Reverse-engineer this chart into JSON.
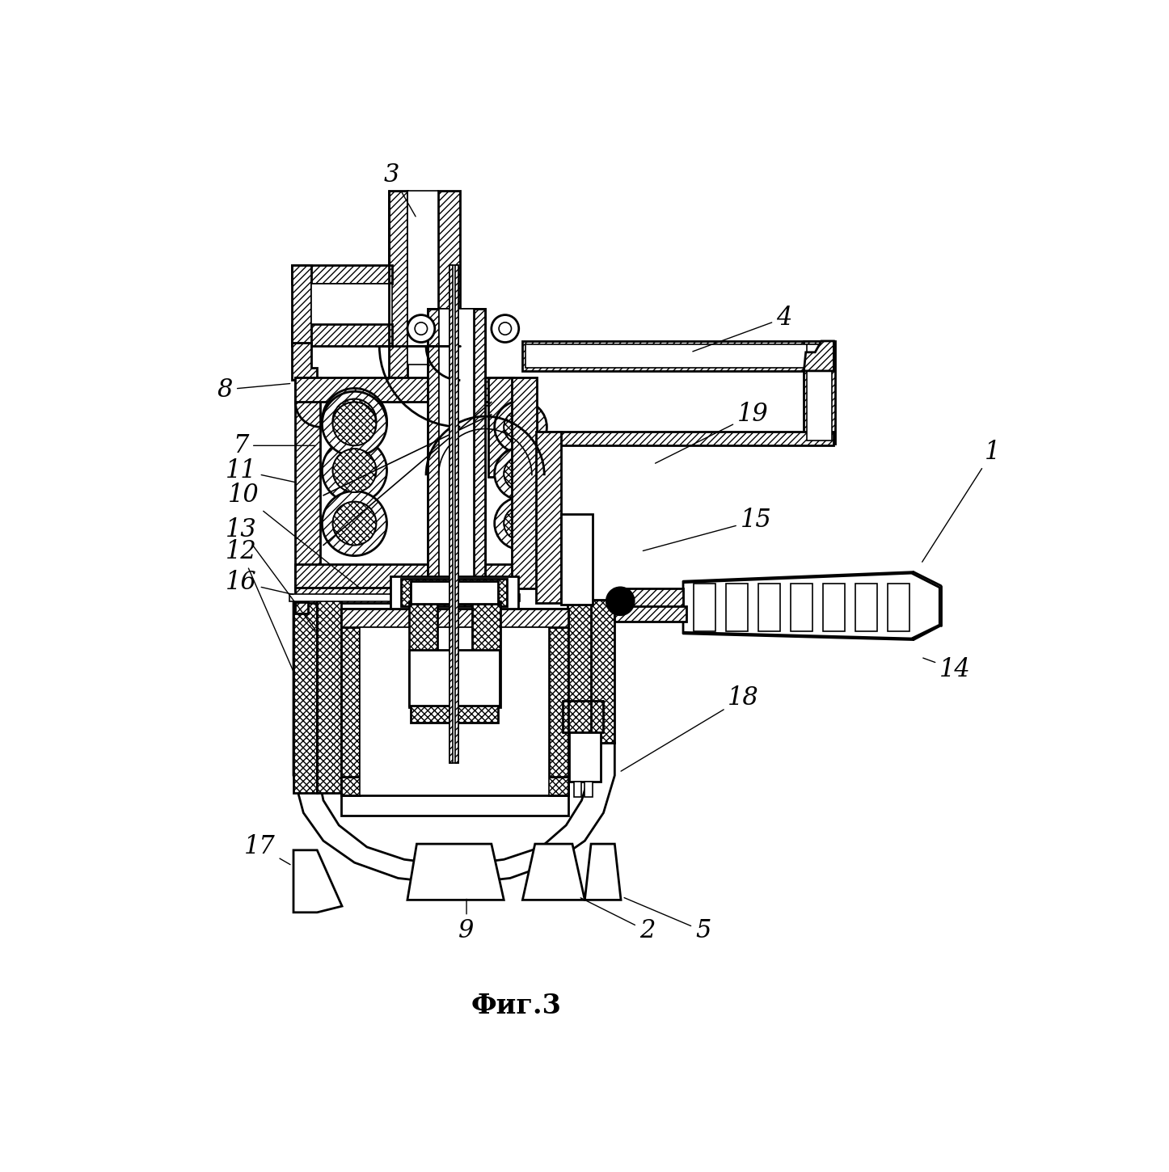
{
  "title": "Фиг.3",
  "title_fontsize": 24,
  "bg_color": "#ffffff",
  "figsize": [
    14.46,
    14.5
  ],
  "dpi": 100,
  "lw_main": 2.0,
  "lw_thin": 1.2,
  "lw_thick": 3.0,
  "labels": [
    [
      "1",
      1355,
      500,
      1240,
      680
    ],
    [
      "2",
      800,
      1270,
      690,
      1215
    ],
    [
      "3",
      390,
      55,
      430,
      125
    ],
    [
      "4",
      1020,
      285,
      870,
      340
    ],
    [
      "5",
      890,
      1270,
      760,
      1215
    ],
    [
      "7",
      148,
      490,
      270,
      490
    ],
    [
      "8",
      122,
      400,
      230,
      390
    ],
    [
      "9",
      510,
      1270,
      510,
      1215
    ],
    [
      "10",
      152,
      570,
      340,
      720
    ],
    [
      "11",
      148,
      530,
      240,
      550
    ],
    [
      "12",
      148,
      660,
      235,
      860
    ],
    [
      "13",
      148,
      625,
      270,
      790
    ],
    [
      "14",
      1295,
      850,
      1240,
      830
    ],
    [
      "15",
      975,
      610,
      790,
      660
    ],
    [
      "16",
      148,
      710,
      235,
      730
    ],
    [
      "17",
      178,
      1135,
      230,
      1165
    ],
    [
      "18",
      955,
      895,
      755,
      1015
    ],
    [
      "19",
      970,
      440,
      810,
      520
    ]
  ]
}
